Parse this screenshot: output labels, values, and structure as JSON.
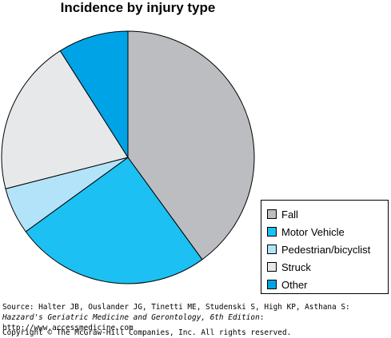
{
  "chart_data": {
    "type": "pie",
    "title": "Incidence by injury type",
    "slices": [
      {
        "label": "Fall",
        "value": 40,
        "color": "#bcbdc0"
      },
      {
        "label": "Motor Vehicle",
        "value": 25,
        "color": "#1cc0f3"
      },
      {
        "label": "Pedestrian/bicyclist",
        "value": 6,
        "color": "#b3e3f8"
      },
      {
        "label": "Struck",
        "value": 20,
        "color": "#e7e8ea"
      },
      {
        "label": "Other",
        "value": 9,
        "color": "#00a3e6"
      }
    ],
    "legend_position": "bottom-right"
  },
  "source": {
    "prefix": "Source: Halter JB, Ouslander JG, Tinetti ME, Studenski S, High KP, Asthana S: ",
    "book": "Hazzard's Geriatric Medicine and Gerontology, 6th Edition",
    "suffix": ": http://www.accessmedicine.com"
  },
  "copyright": "Copyright © The McGraw-Hill Companies, Inc. All rights reserved."
}
